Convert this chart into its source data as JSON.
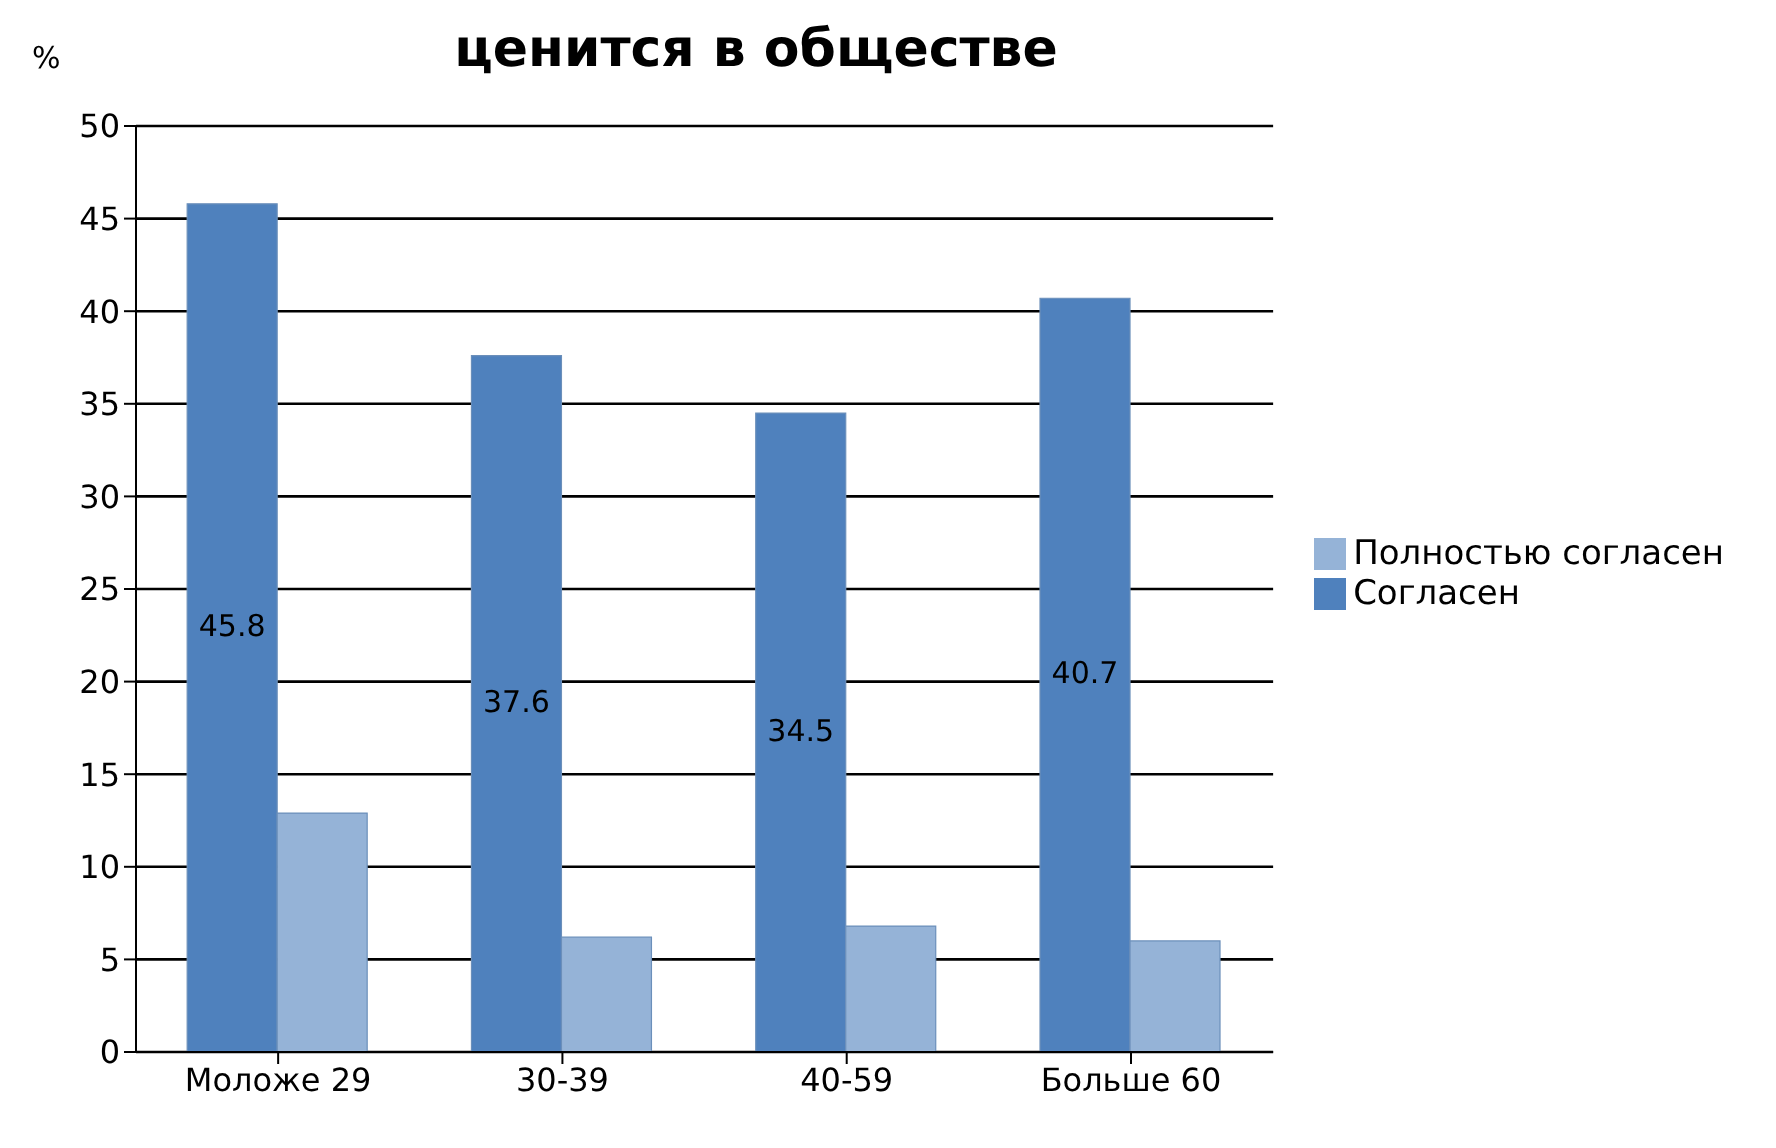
{
  "chart_data": {
    "type": "bar",
    "title": "ценится в обществе",
    "ylabel": "%",
    "categories": [
      "Моложе 29",
      "30-39",
      "40-59",
      "Больше 60"
    ],
    "series": [
      {
        "name": "Согласен",
        "color": "#4f81bd",
        "values": [
          45.8,
          37.6,
          34.5,
          40.7
        ],
        "value_labels": [
          "45.8",
          "37.6",
          "34.5",
          "40.7"
        ]
      },
      {
        "name": "Полностью согласен",
        "color": "#95b3d7",
        "values": [
          12.9,
          6.2,
          6.8,
          6.0
        ]
      }
    ],
    "ylim": [
      0,
      50
    ],
    "yticks": [
      0,
      5,
      10,
      15,
      20,
      25,
      30,
      35,
      40,
      45,
      50
    ],
    "grid": "y",
    "legend": "right"
  }
}
